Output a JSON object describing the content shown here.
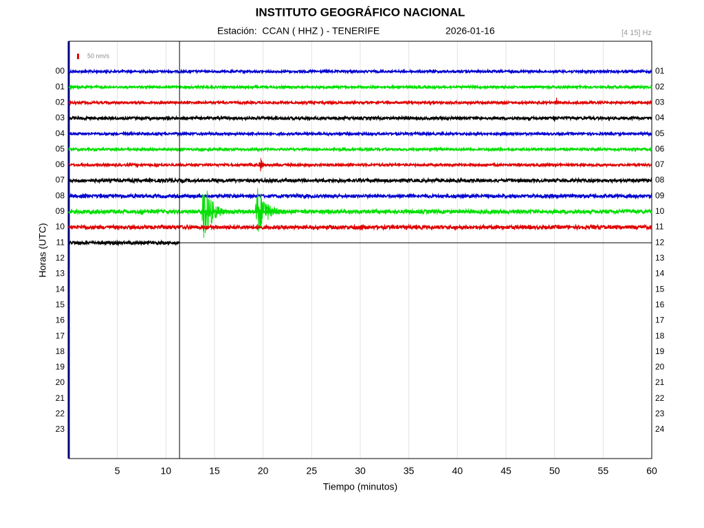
{
  "chart_data": {
    "type": "helicorder",
    "title": "INSTITUTO GEOGRÁFICO NACIONAL",
    "station": "Estación:  CCAN ( HHZ ) - TENERIFE",
    "date": "2026-01-16",
    "filter": "[4 15] Hz",
    "scale_bar": {
      "value": 50,
      "label": "50 nm/s",
      "color": "#e00000"
    },
    "x_label": "Tiempo (minutos)",
    "y_label": "Horas (UTC)",
    "xlim": [
      0,
      60
    ],
    "xticks": [
      5,
      10,
      15,
      20,
      25,
      30,
      35,
      40,
      45,
      50,
      55,
      60
    ],
    "grid": true,
    "left_labels": [
      "00",
      "01",
      "02",
      "03",
      "04",
      "05",
      "06",
      "07",
      "08",
      "09",
      "10",
      "11",
      "12",
      "13",
      "14",
      "15",
      "16",
      "17",
      "18",
      "19",
      "20",
      "21",
      "22",
      "23"
    ],
    "right_labels": [
      "01",
      "02",
      "03",
      "04",
      "05",
      "06",
      "07",
      "08",
      "09",
      "10",
      "11",
      "12",
      "13",
      "14",
      "15",
      "16",
      "17",
      "18",
      "19",
      "20",
      "21",
      "22",
      "23",
      "24"
    ],
    "traces": [
      {
        "color": "#0000d0",
        "end": 60,
        "noise": 10,
        "events": []
      },
      {
        "color": "#00e000",
        "end": 60,
        "noise": 10,
        "events": []
      },
      {
        "color": "#e00000",
        "end": 60,
        "noise": 10,
        "events": [
          {
            "t": 50.2,
            "amp": 50,
            "dur": 0.3
          }
        ]
      },
      {
        "color": "#000000",
        "end": 60,
        "noise": 12,
        "events": [
          {
            "t": 50,
            "amp": 40,
            "dur": 0.4
          }
        ]
      },
      {
        "color": "#0000d0",
        "end": 60,
        "noise": 10,
        "events": []
      },
      {
        "color": "#00e000",
        "end": 60,
        "noise": 10,
        "events": []
      },
      {
        "color": "#e00000",
        "end": 60,
        "noise": 10,
        "events": [
          {
            "t": 19.8,
            "amp": 100,
            "dur": 0.5
          },
          {
            "t": 53,
            "amp": 25,
            "dur": 0.3
          }
        ]
      },
      {
        "color": "#000000",
        "end": 60,
        "noise": 14,
        "events": []
      },
      {
        "color": "#0000d0",
        "end": 60,
        "noise": 14,
        "events": [
          {
            "t": 5.2,
            "amp": 25,
            "dur": 0.8
          }
        ]
      },
      {
        "color": "#00e000",
        "end": 60,
        "noise": 16,
        "events": [
          {
            "t": 7.5,
            "amp": 40,
            "dur": 0.5
          },
          {
            "t": 13.9,
            "amp": 300,
            "dur": 2.5
          },
          {
            "t": 19.4,
            "amp": 240,
            "dur": 3
          }
        ]
      },
      {
        "color": "#e00000",
        "end": 60,
        "noise": 16,
        "events": [
          {
            "t": 30,
            "amp": 30,
            "dur": 1.5
          }
        ]
      },
      {
        "color": "#000000",
        "end": 11.4,
        "noise": 14,
        "events": []
      }
    ]
  }
}
